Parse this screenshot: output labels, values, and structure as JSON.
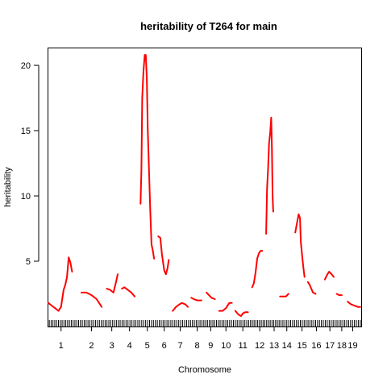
{
  "chart_data": {
    "type": "line",
    "title": "heritability of T264 for main",
    "xlabel": "Chromosome",
    "ylabel": "heritability",
    "ylim": [
      0,
      21.3
    ],
    "yticks": [
      5,
      10,
      15,
      20
    ],
    "grid": false,
    "legend": "none",
    "line_color": "#ff0000",
    "categories": [
      "1",
      "2",
      "3",
      "4",
      "5",
      "6",
      "7",
      "8",
      "9",
      "10",
      "11",
      "12",
      "13",
      "14",
      "15",
      "16",
      "17",
      "18",
      "19"
    ],
    "chromosomes": [
      {
        "name": "1",
        "start": 0,
        "end": 1.95,
        "label_at": 0.75,
        "points": [
          [
            0.0,
            1.8
          ],
          [
            0.2,
            1.6
          ],
          [
            0.4,
            1.4
          ],
          [
            0.6,
            1.2
          ],
          [
            0.75,
            1.5
          ],
          [
            0.9,
            2.8
          ],
          [
            1.0,
            3.2
          ],
          [
            1.1,
            3.8
          ],
          [
            1.2,
            5.3
          ],
          [
            1.3,
            4.9
          ],
          [
            1.4,
            4.2
          ]
        ]
      },
      {
        "name": "2",
        "start": 1.95,
        "end": 3.3,
        "label_at": 2.55,
        "points": [
          [
            1.95,
            2.6
          ],
          [
            2.25,
            2.6
          ],
          [
            2.55,
            2.4
          ],
          [
            2.85,
            2.1
          ],
          [
            3.15,
            1.5
          ]
        ]
      },
      {
        "name": "3",
        "start": 3.3,
        "end": 4.3,
        "label_at": 3.75,
        "points": [
          [
            3.45,
            2.9
          ],
          [
            3.65,
            2.8
          ],
          [
            3.85,
            2.6
          ],
          [
            4.0,
            3.4
          ],
          [
            4.1,
            4.0
          ]
        ]
      },
      {
        "name": "4",
        "start": 4.3,
        "end": 5.35,
        "label_at": 4.8,
        "points": [
          [
            4.35,
            2.9
          ],
          [
            4.5,
            3.0
          ],
          [
            4.7,
            2.8
          ],
          [
            4.9,
            2.6
          ],
          [
            5.1,
            2.3
          ]
        ]
      },
      {
        "name": "5",
        "start": 5.35,
        "end": 6.5,
        "label_at": 5.85,
        "points": [
          [
            5.45,
            9.4
          ],
          [
            5.5,
            12.0
          ],
          [
            5.55,
            17.5
          ],
          [
            5.62,
            19.5
          ],
          [
            5.7,
            20.8
          ],
          [
            5.76,
            20.8
          ],
          [
            5.82,
            19.0
          ],
          [
            5.88,
            15.0
          ],
          [
            5.95,
            12.0
          ],
          [
            6.02,
            9.0
          ],
          [
            6.1,
            6.3
          ],
          [
            6.18,
            5.8
          ],
          [
            6.25,
            5.2
          ]
        ]
      },
      {
        "name": "6",
        "start": 6.5,
        "end": 7.3,
        "label_at": 6.85,
        "points": [
          [
            6.5,
            6.9
          ],
          [
            6.62,
            6.8
          ],
          [
            6.72,
            5.5
          ],
          [
            6.85,
            4.3
          ],
          [
            6.95,
            4.0
          ],
          [
            7.05,
            4.5
          ],
          [
            7.12,
            5.1
          ]
        ]
      },
      {
        "name": "7",
        "start": 7.3,
        "end": 8.35,
        "label_at": 7.8,
        "points": [
          [
            7.35,
            1.2
          ],
          [
            7.55,
            1.5
          ],
          [
            7.75,
            1.7
          ],
          [
            7.9,
            1.8
          ],
          [
            8.1,
            1.7
          ],
          [
            8.25,
            1.5
          ]
        ]
      },
      {
        "name": "8",
        "start": 8.35,
        "end": 9.25,
        "label_at": 8.8,
        "points": [
          [
            8.45,
            2.2
          ],
          [
            8.6,
            2.1
          ],
          [
            8.8,
            2.0
          ],
          [
            9.05,
            2.0
          ]
        ]
      },
      {
        "name": "9",
        "start": 9.25,
        "end": 10.1,
        "label_at": 9.6,
        "points": [
          [
            9.35,
            2.6
          ],
          [
            9.5,
            2.4
          ],
          [
            9.65,
            2.2
          ],
          [
            9.85,
            2.1
          ]
        ]
      },
      {
        "name": "10",
        "start": 10.1,
        "end": 11.0,
        "label_at": 10.5,
        "points": [
          [
            10.1,
            1.2
          ],
          [
            10.3,
            1.2
          ],
          [
            10.5,
            1.4
          ],
          [
            10.7,
            1.8
          ],
          [
            10.85,
            1.8
          ]
        ]
      },
      {
        "name": "11",
        "start": 11.0,
        "end": 11.9,
        "label_at": 11.5,
        "points": [
          [
            11.05,
            1.2
          ],
          [
            11.25,
            0.9
          ],
          [
            11.4,
            0.8
          ],
          [
            11.5,
            1.0
          ],
          [
            11.65,
            1.1
          ],
          [
            11.8,
            1.1
          ]
        ]
      },
      {
        "name": "12",
        "start": 11.9,
        "end": 12.75,
        "label_at": 12.5,
        "points": [
          [
            12.05,
            3.0
          ],
          [
            12.15,
            3.3
          ],
          [
            12.25,
            4.1
          ],
          [
            12.35,
            5.2
          ],
          [
            12.45,
            5.6
          ],
          [
            12.55,
            5.8
          ],
          [
            12.65,
            5.8
          ]
        ]
      },
      {
        "name": "13",
        "start": 12.75,
        "end": 13.7,
        "label_at": 13.35,
        "points": [
          [
            12.88,
            7.1
          ],
          [
            12.93,
            10.5
          ],
          [
            13.0,
            12.2
          ],
          [
            13.05,
            14.0
          ],
          [
            13.12,
            14.9
          ],
          [
            13.18,
            16.0
          ],
          [
            13.22,
            13.5
          ],
          [
            13.26,
            10.0
          ],
          [
            13.3,
            8.8
          ]
        ]
      },
      {
        "name": "14",
        "start": 13.7,
        "end": 14.5,
        "label_at": 14.1,
        "points": [
          [
            13.7,
            2.3
          ],
          [
            13.9,
            2.3
          ],
          [
            14.05,
            2.3
          ],
          [
            14.2,
            2.5
          ]
        ]
      },
      {
        "name": "15",
        "start": 14.5,
        "end": 15.3,
        "label_at": 15.0,
        "points": [
          [
            14.6,
            7.2
          ],
          [
            14.7,
            7.9
          ],
          [
            14.8,
            8.6
          ],
          [
            14.88,
            8.3
          ],
          [
            14.93,
            6.5
          ],
          [
            15.0,
            5.5
          ],
          [
            15.08,
            4.5
          ],
          [
            15.15,
            3.8
          ]
        ]
      },
      {
        "name": "16",
        "start": 15.3,
        "end": 16.2,
        "label_at": 15.85,
        "points": [
          [
            15.35,
            3.4
          ],
          [
            15.45,
            3.2
          ],
          [
            15.55,
            2.9
          ],
          [
            15.65,
            2.6
          ],
          [
            15.8,
            2.5
          ]
        ]
      },
      {
        "name": "17",
        "start": 16.2,
        "end": 16.9,
        "label_at": 16.65,
        "points": [
          [
            16.35,
            3.6
          ],
          [
            16.5,
            4.0
          ],
          [
            16.6,
            4.2
          ],
          [
            16.75,
            4.0
          ],
          [
            16.88,
            3.8
          ]
        ]
      },
      {
        "name": "18",
        "start": 16.9,
        "end": 17.7,
        "label_at": 17.35,
        "points": [
          [
            17.05,
            2.5
          ],
          [
            17.2,
            2.4
          ],
          [
            17.35,
            2.4
          ]
        ]
      },
      {
        "name": "19",
        "start": 17.7,
        "end": 18.5,
        "label_at": 18.0,
        "points": [
          [
            17.7,
            1.9
          ],
          [
            17.9,
            1.7
          ],
          [
            18.1,
            1.6
          ],
          [
            18.3,
            1.5
          ],
          [
            18.45,
            1.5
          ]
        ]
      }
    ]
  }
}
